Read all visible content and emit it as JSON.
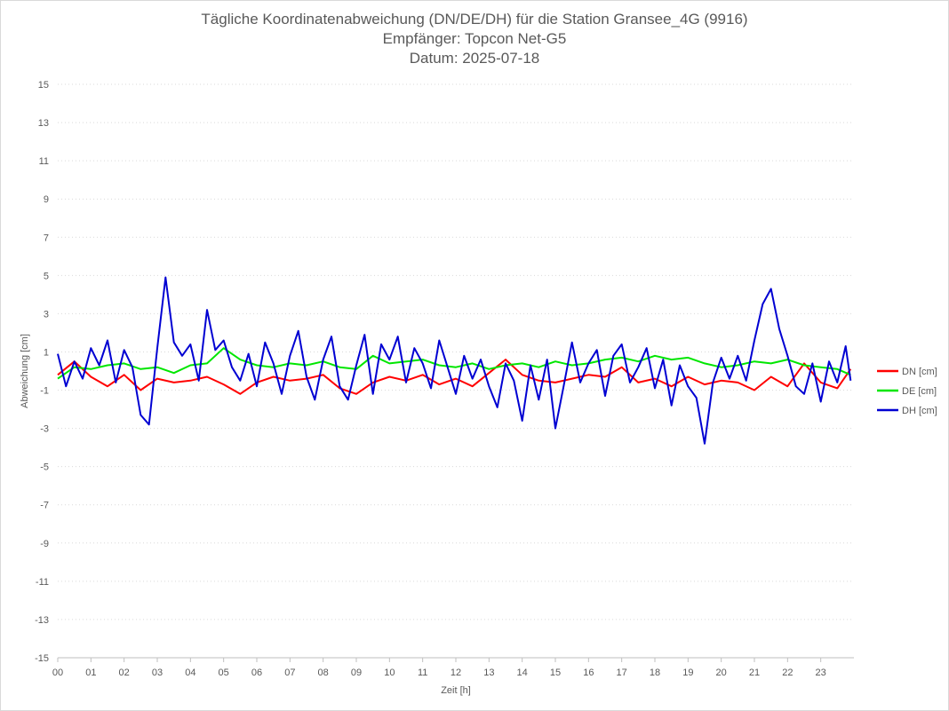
{
  "chart_data": {
    "type": "line",
    "title": "Tägliche Koordinatenabweichung (DN/DE/DH) für die Station Gransee_4G (9916)",
    "subtitle": "Empfänger: Topcon Net-G5",
    "date_line": "Datum: 2025-07-18",
    "xlabel": "Zeit [h]",
    "ylabel": "Abweichung [cm]",
    "xlim": [
      0,
      24
    ],
    "ylim": [
      -15,
      15
    ],
    "x_ticks": [
      0,
      1,
      2,
      3,
      4,
      5,
      6,
      7,
      8,
      9,
      10,
      11,
      12,
      13,
      14,
      15,
      16,
      17,
      18,
      19,
      20,
      21,
      22,
      23
    ],
    "x_tick_labels": [
      "00",
      "01",
      "02",
      "03",
      "04",
      "05",
      "06",
      "07",
      "08",
      "09",
      "10",
      "11",
      "12",
      "13",
      "14",
      "15",
      "16",
      "17",
      "18",
      "19",
      "20",
      "21",
      "22",
      "23"
    ],
    "y_ticks": [
      15,
      13,
      11,
      9,
      7,
      5,
      3,
      1,
      -1,
      -3,
      -5,
      -7,
      -9,
      -11,
      -13,
      -15
    ],
    "y_tick_labels": [
      "15",
      "13",
      "11",
      "9",
      "7",
      "5",
      "3",
      "1",
      "-1",
      "-3",
      "-5",
      "-7",
      "-9",
      "-11",
      "-13",
      "-15"
    ],
    "grid": "horizontal-dotted",
    "legend_position": "right",
    "series": [
      {
        "name": "DN [cm]",
        "color": "#ff0000",
        "x": [
          0,
          0.5,
          1,
          1.5,
          2,
          2.5,
          3,
          3.5,
          4,
          4.5,
          5,
          5.5,
          6,
          6.5,
          7,
          7.5,
          8,
          8.5,
          9,
          9.5,
          10,
          10.5,
          11,
          11.5,
          12,
          12.5,
          13,
          13.5,
          14,
          14.5,
          15,
          15.5,
          16,
          16.5,
          17,
          17.5,
          18,
          18.5,
          19,
          19.5,
          20,
          20.5,
          21,
          21.5,
          22,
          22.5,
          23,
          23.5,
          23.9
        ],
        "values": [
          -0.2,
          0.5,
          -0.3,
          -0.8,
          -0.2,
          -1.0,
          -0.4,
          -0.6,
          -0.5,
          -0.3,
          -0.7,
          -1.2,
          -0.6,
          -0.3,
          -0.5,
          -0.4,
          -0.2,
          -0.9,
          -1.2,
          -0.6,
          -0.3,
          -0.5,
          -0.2,
          -0.7,
          -0.4,
          -0.8,
          -0.1,
          0.6,
          -0.2,
          -0.5,
          -0.6,
          -0.4,
          -0.2,
          -0.3,
          0.2,
          -0.6,
          -0.4,
          -0.8,
          -0.3,
          -0.7,
          -0.5,
          -0.6,
          -1.0,
          -0.3,
          -0.8,
          0.4,
          -0.6,
          -0.9,
          0.1
        ]
      },
      {
        "name": "DE [cm]",
        "color": "#00e600",
        "x": [
          0,
          0.5,
          1,
          1.5,
          2,
          2.5,
          3,
          3.5,
          4,
          4.5,
          5,
          5.5,
          6,
          6.5,
          7,
          7.5,
          8,
          8.5,
          9,
          9.5,
          10,
          10.5,
          11,
          11.5,
          12,
          12.5,
          13,
          13.5,
          14,
          14.5,
          15,
          15.5,
          16,
          16.5,
          17,
          17.5,
          18,
          18.5,
          19,
          19.5,
          20,
          20.5,
          21,
          21.5,
          22,
          22.5,
          23,
          23.5,
          23.9
        ],
        "values": [
          -0.4,
          0.2,
          0.1,
          0.3,
          0.4,
          0.1,
          0.2,
          -0.1,
          0.3,
          0.4,
          1.2,
          0.6,
          0.3,
          0.2,
          0.4,
          0.3,
          0.5,
          0.2,
          0.1,
          0.8,
          0.4,
          0.5,
          0.6,
          0.3,
          0.2,
          0.4,
          0.1,
          0.3,
          0.4,
          0.2,
          0.5,
          0.3,
          0.4,
          0.6,
          0.7,
          0.5,
          0.8,
          0.6,
          0.7,
          0.4,
          0.2,
          0.3,
          0.5,
          0.4,
          0.6,
          0.3,
          0.2,
          0.1,
          -0.2
        ]
      },
      {
        "name": "DH [cm]",
        "color": "#0000d2",
        "x": [
          0,
          0.25,
          0.5,
          0.75,
          1,
          1.25,
          1.5,
          1.75,
          2,
          2.25,
          2.5,
          2.75,
          3,
          3.25,
          3.5,
          3.75,
          4,
          4.25,
          4.5,
          4.75,
          5,
          5.25,
          5.5,
          5.75,
          6,
          6.25,
          6.5,
          6.75,
          7,
          7.25,
          7.5,
          7.75,
          8,
          8.25,
          8.5,
          8.75,
          9,
          9.25,
          9.5,
          9.75,
          10,
          10.25,
          10.5,
          10.75,
          11,
          11.25,
          11.5,
          11.75,
          12,
          12.25,
          12.5,
          12.75,
          13,
          13.25,
          13.5,
          13.75,
          14,
          14.25,
          14.5,
          14.75,
          15,
          15.25,
          15.5,
          15.75,
          16,
          16.25,
          16.5,
          16.75,
          17,
          17.25,
          17.5,
          17.75,
          18,
          18.25,
          18.5,
          18.75,
          19,
          19.25,
          19.5,
          19.75,
          20,
          20.25,
          20.5,
          20.75,
          21,
          21.25,
          21.5,
          21.75,
          22,
          22.25,
          22.5,
          22.75,
          23,
          23.25,
          23.5,
          23.75,
          23.9
        ],
        "values": [
          0.9,
          -0.8,
          0.5,
          -0.4,
          1.2,
          0.3,
          1.6,
          -0.6,
          1.1,
          0.2,
          -2.3,
          -2.8,
          1.2,
          4.9,
          1.5,
          0.8,
          1.4,
          -0.5,
          3.2,
          1.1,
          1.6,
          0.2,
          -0.5,
          0.9,
          -0.8,
          1.5,
          0.4,
          -1.2,
          0.8,
          2.1,
          -0.3,
          -1.5,
          0.6,
          1.8,
          -0.8,
          -1.5,
          0.3,
          1.9,
          -1.2,
          1.4,
          0.6,
          1.8,
          -0.6,
          1.2,
          0.4,
          -0.9,
          1.6,
          0.2,
          -1.2,
          0.8,
          -0.4,
          0.6,
          -0.8,
          -1.9,
          0.4,
          -0.5,
          -2.6,
          0.3,
          -1.5,
          0.6,
          -3.0,
          -0.8,
          1.5,
          -0.6,
          0.4,
          1.1,
          -1.3,
          0.8,
          1.4,
          -0.6,
          0.2,
          1.2,
          -0.9,
          0.6,
          -1.8,
          0.3,
          -0.8,
          -1.4,
          -3.8,
          -0.6,
          0.7,
          -0.4,
          0.8,
          -0.5,
          1.6,
          3.5,
          4.3,
          2.2,
          0.8,
          -0.8,
          -1.2,
          0.4,
          -1.6,
          0.5,
          -0.6,
          1.3,
          -0.5
        ]
      }
    ]
  }
}
